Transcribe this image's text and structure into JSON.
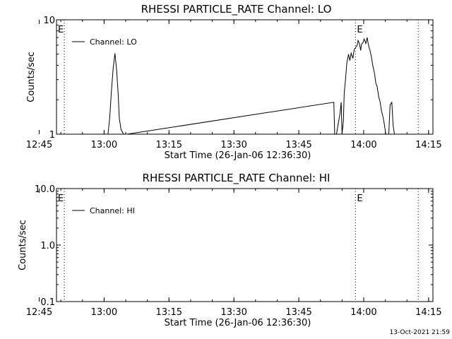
{
  "footer": {
    "timestamp": "13-Oct-2021 21:59"
  },
  "chart_data": [
    {
      "id": "lo",
      "type": "line",
      "title": "RHESSI PARTICLE_RATE Channel: LO",
      "xlabel": "Start Time (26-Jan-06 12:36:30)",
      "ylabel": "Counts/sec",
      "y_scale": "log",
      "ylim": [
        1,
        10
      ],
      "y_ticks": [
        {
          "value": 1,
          "label": "1"
        },
        {
          "value": 10,
          "label": "10"
        }
      ],
      "xlim_minutes": [
        12.5,
        99.5
      ],
      "x_ticks": [
        {
          "minute": 8.5,
          "label": "12:45"
        },
        {
          "minute": 23.5,
          "label": "13:00"
        },
        {
          "minute": 38.5,
          "label": "13:15"
        },
        {
          "minute": 53.5,
          "label": "13:30"
        },
        {
          "minute": 68.5,
          "label": "13:45"
        },
        {
          "minute": 83.5,
          "label": "14:00"
        },
        {
          "minute": 98.5,
          "label": "14:15"
        }
      ],
      "legend": {
        "label": "Channel: LO",
        "position": "top-left"
      },
      "event_lines": [
        {
          "minute": 14.3,
          "marker": "E"
        },
        {
          "minute": 81.6,
          "marker": "E"
        },
        {
          "minute": 96.1,
          "marker": ""
        }
      ],
      "series": [
        {
          "name": "Channel: LO",
          "x": [
            24.4,
            24.8,
            25.2,
            25.6,
            26.0,
            26.4,
            26.8,
            27.0,
            27.4,
            28.0,
            28.4,
            28.8,
            76.6,
            76.8,
            77.0,
            77.2,
            78.0,
            78.3,
            78.5,
            78.8,
            79.0,
            79.3,
            79.6,
            80.0,
            80.3,
            80.6,
            81.0,
            81.3,
            81.6,
            82.0,
            82.2,
            82.5,
            82.8,
            83.0,
            83.3,
            83.6,
            84.0,
            84.3,
            84.6,
            85.0,
            85.3,
            85.6,
            86.0,
            86.3,
            86.6,
            87.0,
            87.3,
            87.6,
            88.0,
            88.3,
            88.6,
            89.0,
            89.3,
            89.6,
            90.0,
            90.3,
            90.6,
            91.0
          ],
          "y": [
            1,
            1.4,
            2.4,
            3.8,
            5.1,
            3.6,
            2.1,
            1.4,
            1.1,
            1,
            1,
            1,
            1.9,
            1,
            1,
            1,
            1.5,
            1.9,
            1,
            1.3,
            2.3,
            3.0,
            4.2,
            5.0,
            4.4,
            5.1,
            4.6,
            5.5,
            5.7,
            6.0,
            6.6,
            6.2,
            5.4,
            6.1,
            6.3,
            6.8,
            6.2,
            7.0,
            6.0,
            5.3,
            4.7,
            4.0,
            3.4,
            2.8,
            2.6,
            2.1,
            1.9,
            1.6,
            1.4,
            1.2,
            1.0,
            1.0,
            1.0,
            1.8,
            1.9,
            1.2,
            1.0,
            1.0
          ]
        }
      ]
    },
    {
      "id": "hi",
      "type": "line",
      "title": "RHESSI PARTICLE_RATE Channel: HI",
      "xlabel": "Start Time (26-Jan-06 12:36:30)",
      "ylabel": "Counts/sec",
      "y_scale": "log",
      "ylim": [
        0.1,
        10
      ],
      "y_ticks": [
        {
          "value": 0.1,
          "label": "0.1"
        },
        {
          "value": 1,
          "label": "1.0"
        },
        {
          "value": 10,
          "label": "10.0"
        }
      ],
      "xlim_minutes": [
        12.5,
        99.5
      ],
      "x_ticks": [
        {
          "minute": 8.5,
          "label": "12:45"
        },
        {
          "minute": 23.5,
          "label": "13:00"
        },
        {
          "minute": 38.5,
          "label": "13:15"
        },
        {
          "minute": 53.5,
          "label": "13:30"
        },
        {
          "minute": 68.5,
          "label": "13:45"
        },
        {
          "minute": 83.5,
          "label": "14:00"
        },
        {
          "minute": 98.5,
          "label": "14:15"
        }
      ],
      "legend": {
        "label": "Channel: HI",
        "position": "top-left"
      },
      "event_lines": [
        {
          "minute": 14.3,
          "marker": "E"
        },
        {
          "minute": 81.6,
          "marker": "E"
        },
        {
          "minute": 96.1,
          "marker": ""
        }
      ],
      "series": [
        {
          "name": "Channel: HI",
          "x": [],
          "y": []
        }
      ]
    }
  ]
}
